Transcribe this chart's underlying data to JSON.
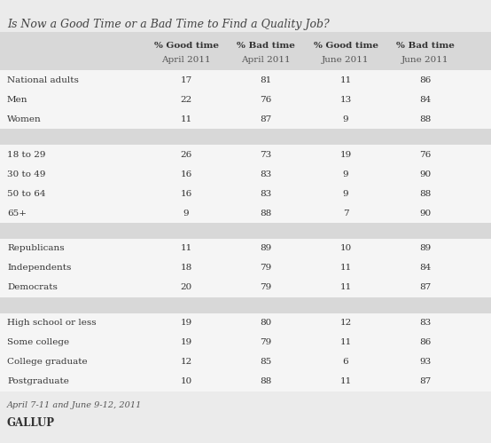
{
  "title": "Is Now a Good Time or a Bad Time to Find a Quality Job?",
  "col_headers_line1": [
    "% Good time",
    "% Bad time",
    "% Good time",
    "% Bad time"
  ],
  "col_headers_line2": [
    "April 2011",
    "April 2011",
    "June 2011",
    "June 2011"
  ],
  "rows": [
    {
      "label": "National adults",
      "values": [
        17,
        81,
        11,
        86
      ],
      "type": "data"
    },
    {
      "label": "Men",
      "values": [
        22,
        76,
        13,
        84
      ],
      "type": "data"
    },
    {
      "label": "Women",
      "values": [
        11,
        87,
        9,
        88
      ],
      "type": "data"
    },
    {
      "label": "",
      "values": [
        null,
        null,
        null,
        null
      ],
      "type": "separator"
    },
    {
      "label": "18 to 29",
      "values": [
        26,
        73,
        19,
        76
      ],
      "type": "data"
    },
    {
      "label": "30 to 49",
      "values": [
        16,
        83,
        9,
        90
      ],
      "type": "data"
    },
    {
      "label": "50 to 64",
      "values": [
        16,
        83,
        9,
        88
      ],
      "type": "data"
    },
    {
      "label": "65+",
      "values": [
        9,
        88,
        7,
        90
      ],
      "type": "data"
    },
    {
      "label": "",
      "values": [
        null,
        null,
        null,
        null
      ],
      "type": "separator"
    },
    {
      "label": "Republicans",
      "values": [
        11,
        89,
        10,
        89
      ],
      "type": "data"
    },
    {
      "label": "Independents",
      "values": [
        18,
        79,
        11,
        84
      ],
      "type": "data"
    },
    {
      "label": "Democrats",
      "values": [
        20,
        79,
        11,
        87
      ],
      "type": "data"
    },
    {
      "label": "",
      "values": [
        null,
        null,
        null,
        null
      ],
      "type": "separator"
    },
    {
      "label": "High school or less",
      "values": [
        19,
        80,
        12,
        83
      ],
      "type": "data"
    },
    {
      "label": "Some college",
      "values": [
        19,
        79,
        11,
        86
      ],
      "type": "data"
    },
    {
      "label": "College graduate",
      "values": [
        12,
        85,
        6,
        93
      ],
      "type": "data"
    },
    {
      "label": "Postgraduate",
      "values": [
        10,
        88,
        11,
        87
      ],
      "type": "data"
    }
  ],
  "footnote": "April 7-11 and June 9-12, 2011",
  "source": "GALLUP",
  "bg_color": "#ebebeb",
  "data_row_color": "#f5f5f5",
  "separator_color": "#d8d8d8",
  "header_bg_color": "#d8d8d8",
  "title_color": "#444444",
  "text_color": "#333333",
  "header_bold_color": "#333333",
  "header_sub_color": "#555555"
}
